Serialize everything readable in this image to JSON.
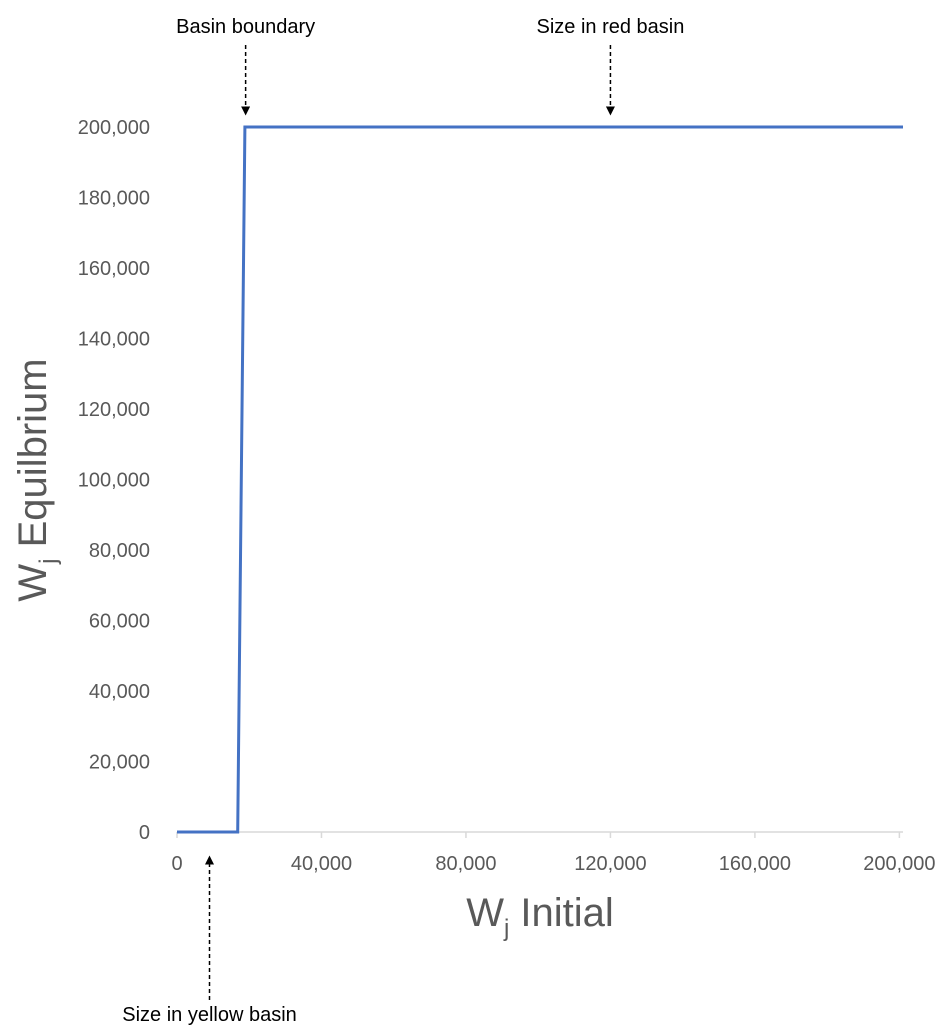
{
  "chart_data": {
    "type": "line",
    "title": "",
    "xlabel": {
      "main": "W",
      "sub": "j",
      "rest": " Initial"
    },
    "ylabel": {
      "main": "W",
      "sub": "j",
      "rest": " Equilbrium"
    },
    "xlim": [
      0,
      201000
    ],
    "ylim": [
      0,
      200000
    ],
    "x_ticks": [
      0,
      40000,
      80000,
      120000,
      160000,
      200000
    ],
    "x_tick_labels": [
      "0",
      "40,000",
      "80,000",
      "120,000",
      "160,000",
      "200,000"
    ],
    "y_ticks": [
      0,
      20000,
      40000,
      60000,
      80000,
      100000,
      120000,
      140000,
      160000,
      180000,
      200000
    ],
    "y_tick_labels": [
      "0",
      "20,000",
      "40,000",
      "60,000",
      "80,000",
      "100,000",
      "120,000",
      "140,000",
      "160,000",
      "180,000",
      "200,000"
    ],
    "grid": false,
    "legend": "none",
    "series": [
      {
        "color": "#4472C4",
        "x": [
          0,
          16800,
          18800,
          201000
        ],
        "y": [
          0,
          0,
          200000,
          200000
        ]
      }
    ],
    "annotations": [
      {
        "text": "Basin boundary",
        "x": 19000,
        "direction": "down"
      },
      {
        "text": "Size in red basin",
        "x": 120000,
        "direction": "down"
      },
      {
        "text": "Size in yellow basin",
        "x": 9000,
        "direction": "up"
      }
    ]
  }
}
